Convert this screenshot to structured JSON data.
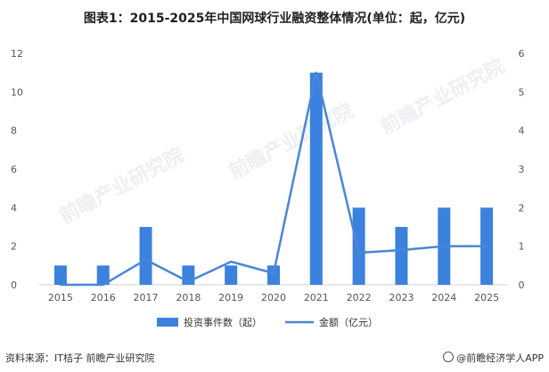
{
  "title": "图表1：2015-2025年中国网球行业融资整体情况(单位：起，亿元)",
  "source": "资料来源：IT桔子 前瞻产业研究院",
  "brand": "@前瞻经济学人APP",
  "watermark": "前瞻产业研究院",
  "chart_data": {
    "type": "bar",
    "categories": [
      "2015",
      "2016",
      "2017",
      "2018",
      "2019",
      "2020",
      "2021",
      "2022",
      "2023",
      "2024",
      "2025"
    ],
    "series": [
      {
        "name": "投资事件数（起）",
        "type": "bar",
        "axis": "left",
        "color": "#3b82df",
        "values": [
          1,
          1,
          3,
          1,
          1,
          1,
          11,
          4,
          3,
          4,
          4
        ]
      },
      {
        "name": "金额（亿元）",
        "type": "line",
        "axis": "right",
        "color": "#4a86d8",
        "values": [
          0.0,
          0.0,
          0.65,
          0.08,
          0.6,
          0.3,
          5.5,
          0.83,
          0.9,
          1.0,
          1.0
        ]
      }
    ],
    "yleft": {
      "min": 0,
      "max": 12,
      "ticks": [
        0,
        2,
        4,
        6,
        8,
        10,
        12
      ]
    },
    "yright": {
      "min": 0,
      "max": 6,
      "ticks": [
        0,
        1,
        2,
        3,
        4,
        5,
        6
      ]
    },
    "legend_position": "bottom-center"
  }
}
